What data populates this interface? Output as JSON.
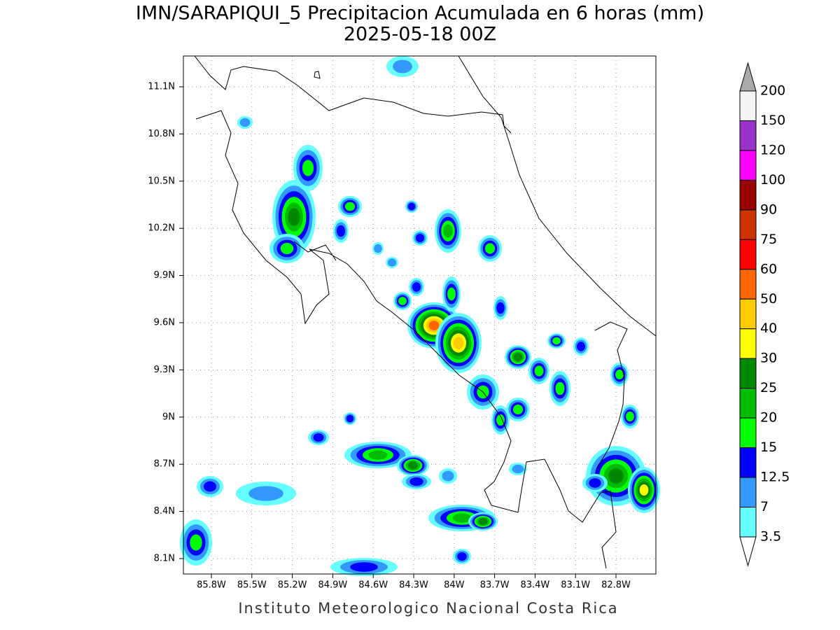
{
  "title": "IMN/SARAPIQUI_5 Precipitacion Acumulada en 6 horas (mm)",
  "subtitle": "2025-05-18 00Z",
  "lon_ticks": [
    "85.8W",
    "85.5W",
    "85.2W",
    "84.9W",
    "84.6W",
    "84.3W",
    "84W",
    "83.7W",
    "83.4W",
    "83.1W",
    "82.8W"
  ],
  "lat_ticks": [
    "11.1N",
    "10.8N",
    "10.5N",
    "10.2N",
    "9.9N",
    "9.6N",
    "9.3N",
    "9N",
    "8.7N",
    "8.4N",
    "8.1N"
  ],
  "colorbar": {
    "levels": [
      200,
      150,
      120,
      100,
      90,
      75,
      60,
      50,
      40,
      30,
      25,
      20,
      15,
      12.5,
      7,
      3.5
    ],
    "colors": [
      "#f5f5f5",
      "#9933cc",
      "#ff00ff",
      "#990000",
      "#cc3300",
      "#ff0000",
      "#ff6600",
      "#ffcc00",
      "#ffff00",
      "#008800",
      "#00bb00",
      "#00ff00",
      "#0000ff",
      "#3399ff",
      "#66ffff"
    ],
    "over_color": "#aaaaaa",
    "under_color": "#ffffff"
  },
  "footer": "Instituto Meteorologico Nacional Costa Rica"
}
